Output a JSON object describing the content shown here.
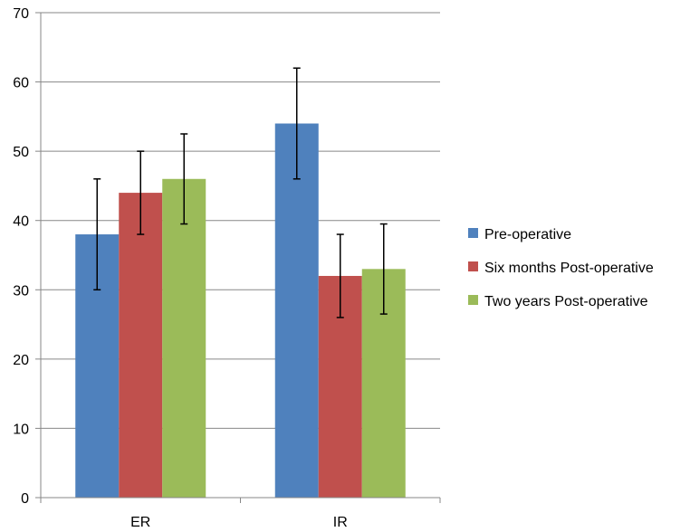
{
  "chart_data": {
    "type": "bar",
    "categories": [
      "ER",
      "IR"
    ],
    "series": [
      {
        "name": "Pre-operative",
        "color": "#4F81BD",
        "values": [
          38,
          54
        ],
        "error_low": [
          30,
          46
        ],
        "error_high": [
          46,
          62
        ]
      },
      {
        "name": "Six months Post-operative",
        "color": "#C0504D",
        "values": [
          44,
          32
        ],
        "error_low": [
          38,
          26
        ],
        "error_high": [
          50,
          38
        ]
      },
      {
        "name": "Two years Post-operative",
        "color": "#9BBB59",
        "values": [
          46,
          33
        ],
        "error_low": [
          39.5,
          26.5
        ],
        "error_high": [
          52.5,
          39.5
        ]
      }
    ],
    "ylim": [
      0,
      70
    ],
    "yticks": [
      0,
      10,
      20,
      30,
      40,
      50,
      60,
      70
    ],
    "grid": true,
    "legend_position": "right"
  }
}
